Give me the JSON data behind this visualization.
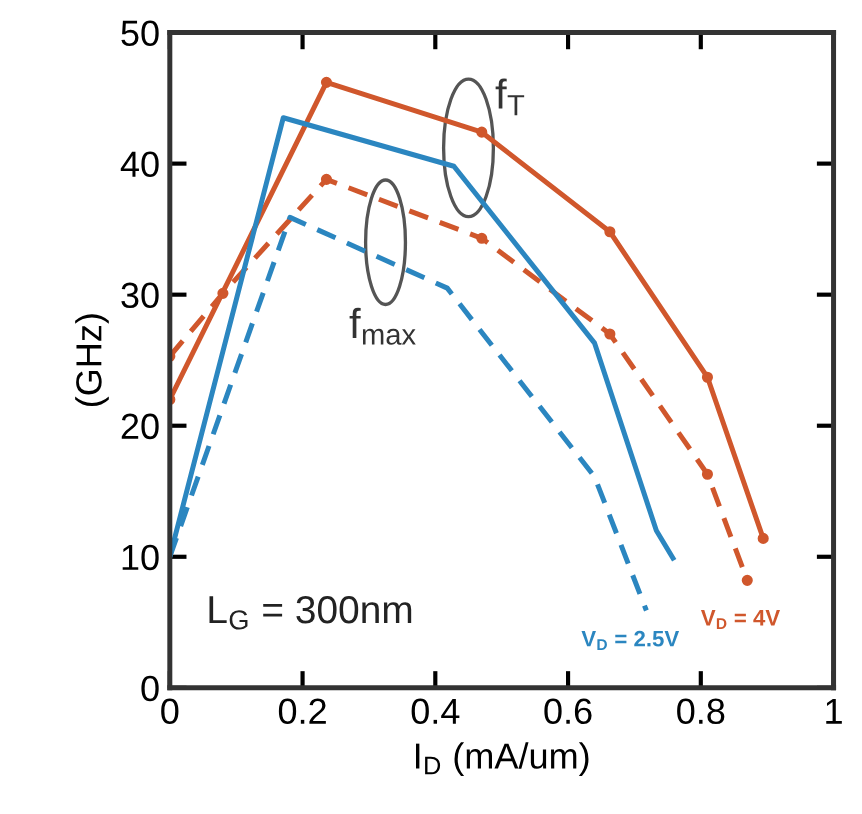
{
  "chart_data": {
    "type": "line",
    "xlabel": "I$_{D}$ (mA/um)",
    "ylabel": "(GHz)",
    "xlim": [
      0,
      1
    ],
    "xticks": [
      0,
      0.2,
      0.4,
      0.6,
      0.8,
      1
    ],
    "ylim": [
      0,
      50
    ],
    "yticks": [
      0,
      10,
      20,
      30,
      40,
      50
    ],
    "grid": false,
    "series": [
      {
        "color": "#d0572c",
        "marker": "circle",
        "line_style": "solid",
        "x": [
          0,
          0.236,
          0.47,
          0.663,
          0.81,
          0.894
        ],
        "values": [
          22,
          46.2,
          42.4,
          34.8,
          23.7,
          11.4
        ]
      },
      {
        "color": "#d0572c",
        "marker": "circle",
        "line_style": "dashed",
        "x": [
          0,
          0.08,
          0.236,
          0.47,
          0.663,
          0.81,
          0.87
        ],
        "values": [
          25.3,
          30.1,
          38.8,
          34.3,
          27.0,
          16.3,
          8.2
        ]
      },
      {
        "color": "#2b86c0",
        "marker": "none",
        "line_style": "solid",
        "x": [
          0,
          0.171,
          0.428,
          0.64,
          0.733,
          0.758
        ],
        "values": [
          10,
          43.5,
          39.8,
          26.3,
          12.0,
          9.9
        ]
      },
      {
        "color": "#2b86c0",
        "marker": "none",
        "line_style": "dashed",
        "x": [
          0,
          0.181,
          0.418,
          0.64,
          0.718
        ],
        "values": [
          10,
          35.9,
          30.5,
          16.1,
          5.9
        ]
      }
    ],
    "annotations": [
      "f$_{T}$",
      "f$_{max}$",
      "L$_{G}$ = 300nm",
      "V$_{D}$ = 2.5V",
      "V$_{D}$ = 4V"
    ]
  }
}
